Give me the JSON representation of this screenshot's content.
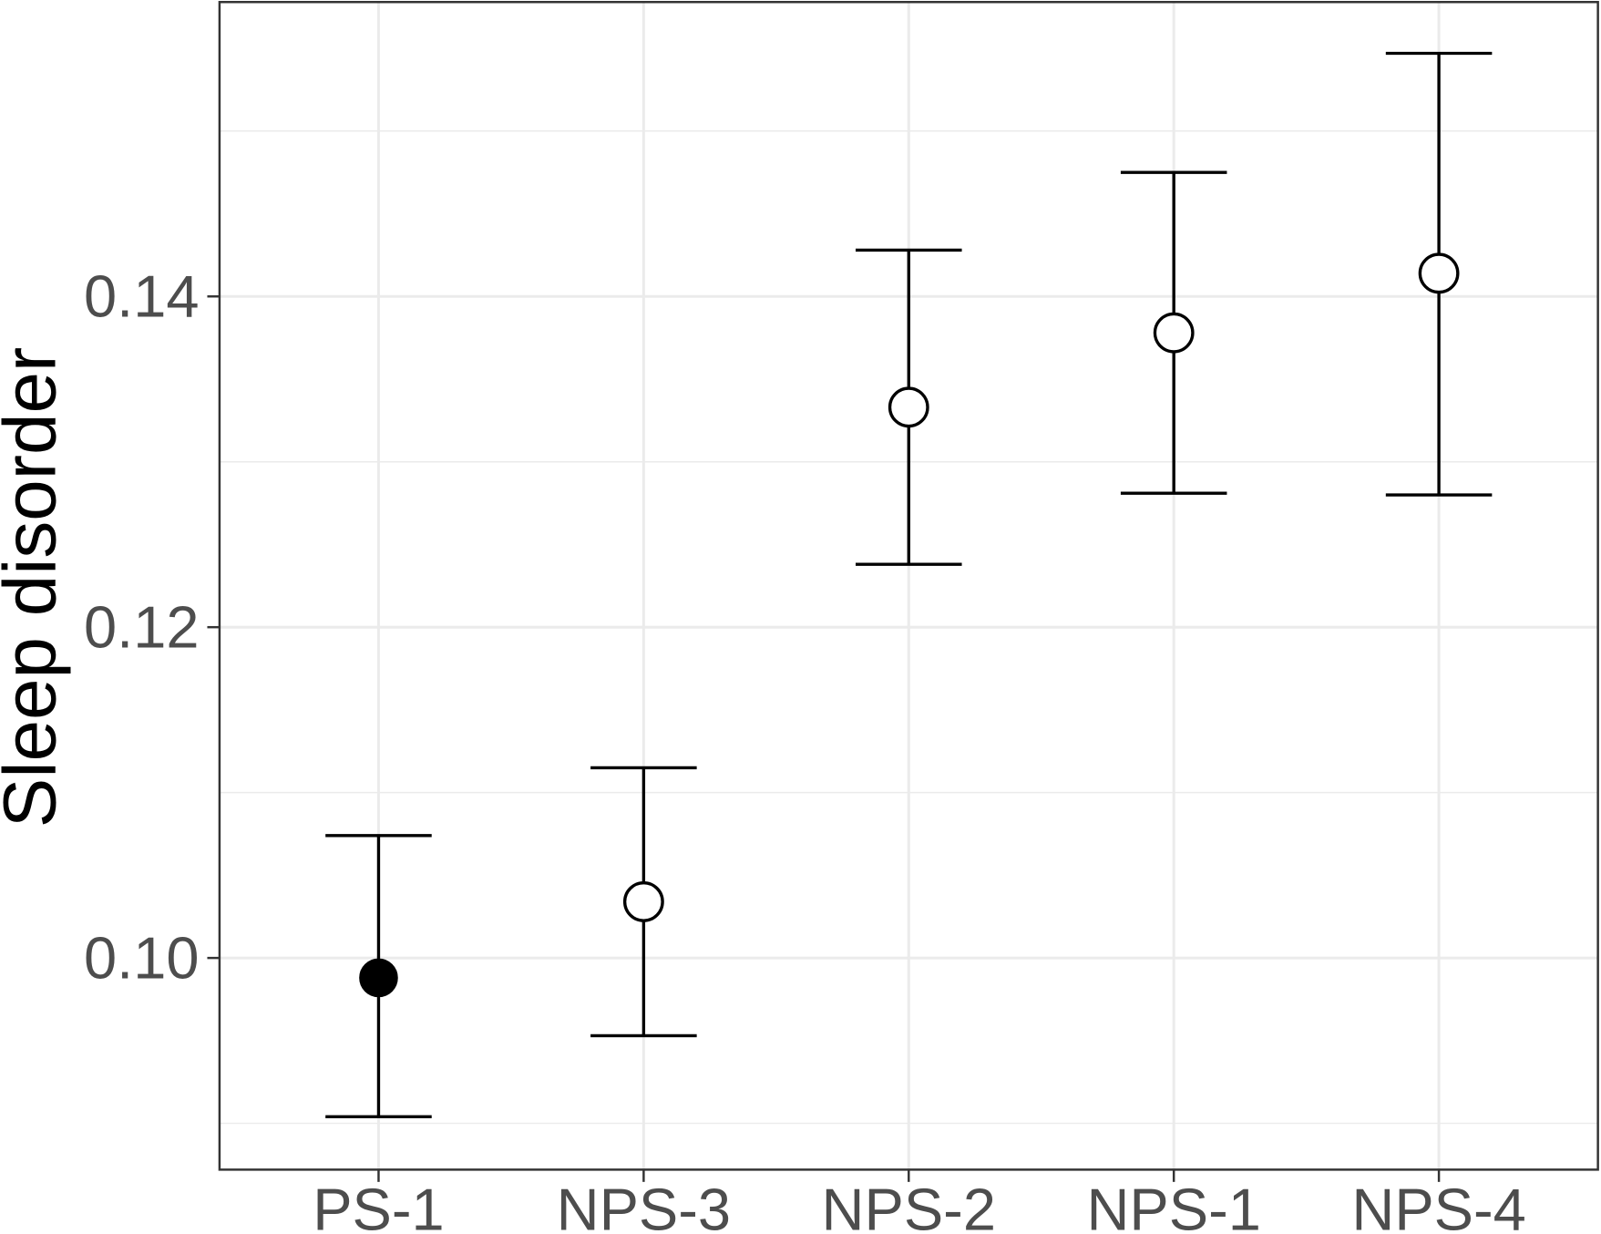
{
  "chart_data": {
    "type": "scatter",
    "title": "",
    "xlabel": "",
    "ylabel": "Sleep disorder",
    "categories": [
      "PS-1",
      "NPS-3",
      "NPS-2",
      "NPS-1",
      "NPS-4"
    ],
    "series": [
      {
        "values": [
          0.0988,
          0.1034,
          0.1333,
          0.1378,
          0.1414
        ],
        "lower": [
          0.0904,
          0.0953,
          0.1238,
          0.1281,
          0.128
        ],
        "upper": [
          0.1074,
          0.1115,
          0.1428,
          0.1475,
          0.1547
        ],
        "markers": [
          "filled",
          "open",
          "open",
          "open",
          "open"
        ]
      }
    ],
    "error_bars": true,
    "ylim": [
      0.0872,
      0.1578
    ],
    "yticks": [
      0.1,
      0.12,
      0.14
    ],
    "ytick_labels": [
      "0.10",
      "0.12",
      "0.14"
    ],
    "y_minor_gridlines": [
      0.09,
      0.11,
      0.13,
      0.15
    ],
    "grid": true,
    "legend": "none",
    "colors": {
      "marks": "#000000",
      "open_marker_fill": "#ffffff",
      "grid": "#ebebeb",
      "panel_border": "#333333",
      "tick_label": "#4d4d4d",
      "axis_title": "#000000"
    }
  }
}
